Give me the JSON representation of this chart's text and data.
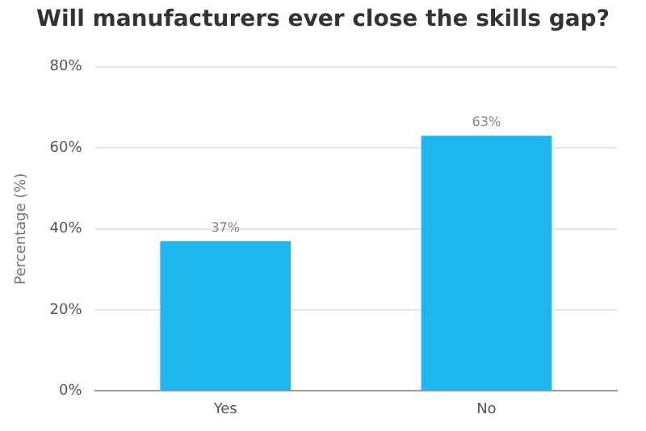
{
  "chart_data": {
    "type": "bar",
    "title": "Will manufacturers ever close the skills gap?",
    "ylabel": "Percentage (%)",
    "categories": [
      "Yes",
      "No"
    ],
    "values": [
      37,
      63
    ],
    "color": "#1fb6f0",
    "value_labels": [
      "37%",
      "63%"
    ],
    "ylim": [
      0,
      80
    ],
    "yticks": [
      {
        "value": 0,
        "label": "0%"
      },
      {
        "value": 20,
        "label": "20%"
      },
      {
        "value": 40,
        "label": "40%"
      },
      {
        "value": 60,
        "label": "60%"
      },
      {
        "value": 80,
        "label": "80%"
      }
    ],
    "grid": "y"
  }
}
